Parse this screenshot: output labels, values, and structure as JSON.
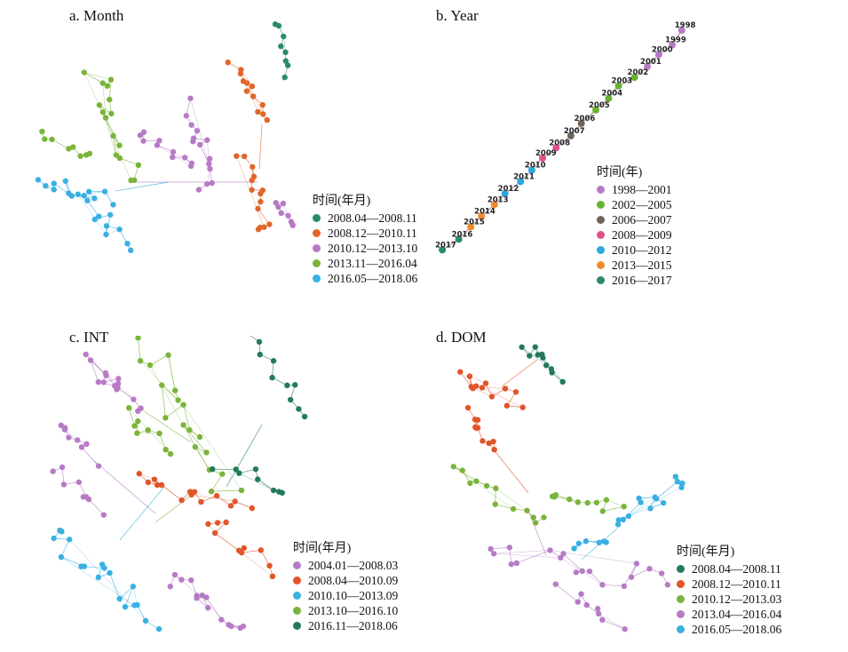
{
  "chart_data": [
    {
      "type": "network",
      "panel_title": "a. Month",
      "legend_title": "时间(年月)",
      "series": [
        {
          "name": "2008.04—2008.11",
          "color": "#2a8a6e"
        },
        {
          "name": "2008.12—2010.11",
          "color": "#e0662a"
        },
        {
          "name": "2010.12—2013.10",
          "color": "#b77bc6"
        },
        {
          "name": "2013.11—2016.04",
          "color": "#7bb43a"
        },
        {
          "name": "2016.05—2018.06",
          "color": "#3ab0e2"
        }
      ]
    },
    {
      "type": "network",
      "panel_title": "b. Year",
      "legend_title": "时间(年)",
      "series": [
        {
          "name": "1998—2001",
          "color": "#b77bc6"
        },
        {
          "name": "2002—2005",
          "color": "#66b230"
        },
        {
          "name": "2006—2007",
          "color": "#6e6558"
        },
        {
          "name": "2008—2009",
          "color": "#e2508a"
        },
        {
          "name": "2010—2012",
          "color": "#2aa8df"
        },
        {
          "name": "2013—2015",
          "color": "#ee8a2a"
        },
        {
          "name": "2016—2017",
          "color": "#2a8a6e"
        }
      ],
      "nodes": [
        {
          "label": "1998",
          "series": 0
        },
        {
          "label": "1999",
          "series": 0
        },
        {
          "label": "2000",
          "series": 0
        },
        {
          "label": "2001",
          "series": 0
        },
        {
          "label": "2002",
          "series": 1
        },
        {
          "label": "2003",
          "series": 1
        },
        {
          "label": "2004",
          "series": 1
        },
        {
          "label": "2005",
          "series": 1
        },
        {
          "label": "2006",
          "series": 2
        },
        {
          "label": "2007",
          "series": 2
        },
        {
          "label": "2008",
          "series": 3
        },
        {
          "label": "2009",
          "series": 3
        },
        {
          "label": "2010",
          "series": 4
        },
        {
          "label": "2011",
          "series": 4
        },
        {
          "label": "2012",
          "series": 4
        },
        {
          "label": "2013",
          "series": 5
        },
        {
          "label": "2014",
          "series": 5
        },
        {
          "label": "2015",
          "series": 5
        },
        {
          "label": "2016",
          "series": 6
        },
        {
          "label": "2017",
          "series": 6
        }
      ]
    },
    {
      "type": "network",
      "panel_title": "c. INT",
      "legend_title": "时间(年月)",
      "series": [
        {
          "name": "2004.01—2008.03",
          "color": "#b77bc6"
        },
        {
          "name": "2008.04—2010.09",
          "color": "#e0552a"
        },
        {
          "name": "2010.10—2013.09",
          "color": "#3ab0e2"
        },
        {
          "name": "2013.10—2016.10",
          "color": "#7bb43a"
        },
        {
          "name": "2016.11—2018.06",
          "color": "#237a5a"
        }
      ]
    },
    {
      "type": "network",
      "panel_title": "d. DOM",
      "legend_title": "时间(年月)",
      "series": [
        {
          "name": "2008.04—2008.11",
          "color": "#237a5a"
        },
        {
          "name": "2008.12—2010.11",
          "color": "#e0552a"
        },
        {
          "name": "2010.12—2013.03",
          "color": "#7bb43a"
        },
        {
          "name": "2013.04—2016.04",
          "color": "#b77bc6"
        },
        {
          "name": "2016.05—2018.06",
          "color": "#3ab0e2"
        }
      ]
    }
  ]
}
